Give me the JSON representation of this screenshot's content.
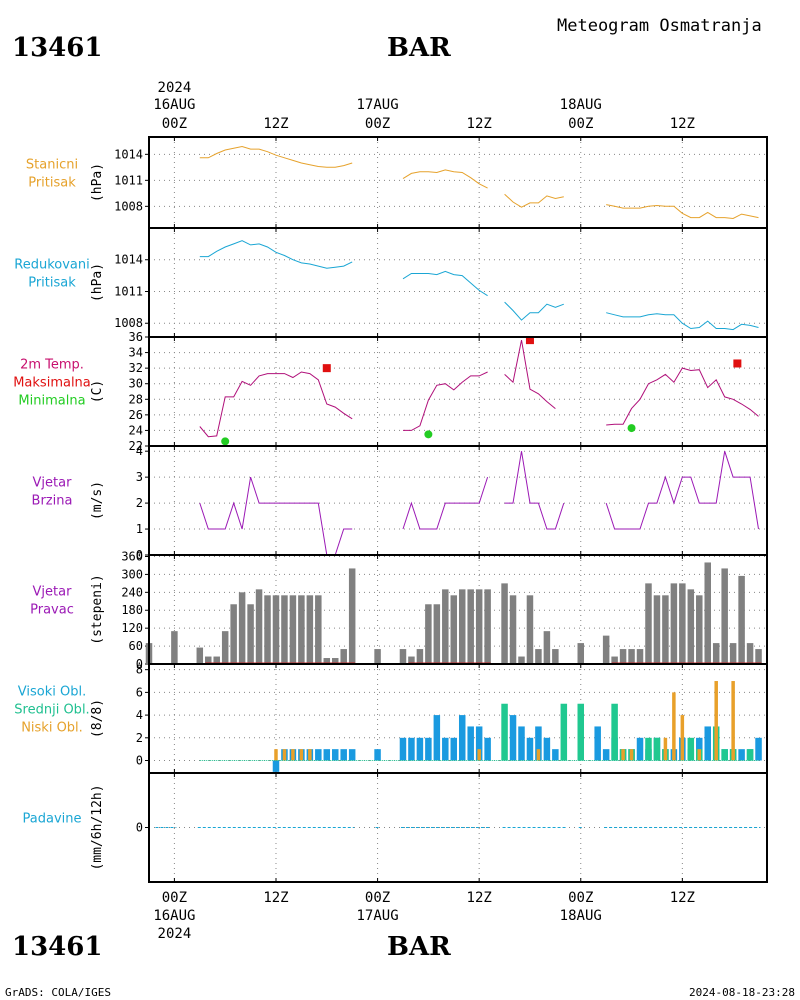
{
  "header": {
    "station_id": "13461",
    "station_name": "BAR",
    "title": "Meteogram Osmatranja"
  },
  "footer": {
    "station_id": "13461",
    "station_name": "BAR",
    "credit": "GrADS: COLA/IGES",
    "timestamp": "2024-08-18-23:28"
  },
  "time_axis": {
    "top_labels": [
      {
        "line1": "2024",
        "line2": "16AUG",
        "line3": "00Z",
        "t": 0
      },
      {
        "line1": "",
        "line2": "",
        "line3": "12Z",
        "t": 12
      },
      {
        "line1": "",
        "line2": "17AUG",
        "line3": "00Z",
        "t": 24
      },
      {
        "line1": "",
        "line2": "",
        "line3": "12Z",
        "t": 36
      },
      {
        "line1": "",
        "line2": "18AUG",
        "line3": "00Z",
        "t": 48
      },
      {
        "line1": "",
        "line2": "",
        "line3": "12Z",
        "t": 60
      }
    ],
    "bottom_labels": [
      {
        "line1": "00Z",
        "line2": "16AUG",
        "line3": "2024",
        "t": 0
      },
      {
        "line1": "12Z",
        "line2": "",
        "line3": "",
        "t": 12
      },
      {
        "line1": "00Z",
        "line2": "17AUG",
        "line3": "",
        "t": 24
      },
      {
        "line1": "12Z",
        "line2": "",
        "line3": "",
        "t": 36
      },
      {
        "line1": "00Z",
        "line2": "18AUG",
        "line3": "",
        "t": 48
      },
      {
        "line1": "12Z",
        "line2": "",
        "line3": "",
        "t": 60
      }
    ],
    "range_hours": [
      -3,
      70
    ]
  },
  "chart_data": [
    {
      "type": "line",
      "panel": "stanicni",
      "labels": [
        "Stanicni",
        "Pritisak"
      ],
      "label_colors": [
        "#e6a22c",
        "#e6a22c"
      ],
      "ylabel": "(hPa)",
      "ylim": [
        1005.5,
        1016.0
      ],
      "yticks": [
        1008,
        1011,
        1014
      ],
      "color": "#e6a22c",
      "segments": [
        {
          "x": [
            3,
            4,
            5,
            6,
            7,
            8,
            9,
            10,
            11,
            12,
            13,
            14,
            15,
            16,
            17,
            18,
            19,
            20,
            21
          ],
          "y": [
            1013.6,
            1013.6,
            1014.1,
            1014.5,
            1014.7,
            1014.9,
            1014.6,
            1014.6,
            1014.3,
            1013.9,
            1013.6,
            1013.3,
            1013.0,
            1012.8,
            1012.6,
            1012.5,
            1012.5,
            1012.7,
            1013.0
          ]
        },
        {
          "x": [
            27,
            28,
            29,
            30,
            31,
            32,
            33,
            34,
            35,
            36,
            37
          ],
          "y": [
            1011.2,
            1011.8,
            1012.0,
            1012.0,
            1011.9,
            1012.2,
            1012.0,
            1011.9,
            1011.3,
            1010.6,
            1010.1
          ]
        },
        {
          "x": [
            39,
            40,
            41,
            42,
            43,
            44,
            45,
            46
          ],
          "y": [
            1009.4,
            1008.5,
            1007.9,
            1008.4,
            1008.4,
            1009.2,
            1008.9,
            1009.1
          ]
        },
        {
          "x": [
            51,
            52,
            53,
            54,
            55,
            56,
            57,
            58,
            59,
            60,
            61,
            62,
            63,
            64,
            65,
            66,
            67,
            68,
            69
          ],
          "y": [
            1008.2,
            1008.0,
            1007.8,
            1007.8,
            1007.8,
            1008.0,
            1008.1,
            1008.0,
            1008.0,
            1007.2,
            1006.7,
            1006.7,
            1007.3,
            1006.7,
            1006.7,
            1006.6,
            1007.1,
            1006.9,
            1006.7
          ]
        }
      ]
    },
    {
      "type": "line",
      "panel": "redukovani",
      "labels": [
        "Redukovani",
        "Pritisak"
      ],
      "label_colors": [
        "#1aa6d4",
        "#1aa6d4"
      ],
      "ylabel": "(hPa)",
      "ylim": [
        1006.7,
        1017.0
      ],
      "yticks": [
        1008,
        1011,
        1014
      ],
      "color": "#1aa6d4",
      "segments": [
        {
          "x": [
            3,
            4,
            5,
            6,
            7,
            8,
            9,
            10,
            11,
            12,
            13,
            14,
            15,
            16,
            17,
            18,
            19,
            20,
            21
          ],
          "y": [
            1014.3,
            1014.3,
            1014.8,
            1015.2,
            1015.5,
            1015.8,
            1015.4,
            1015.5,
            1015.2,
            1014.7,
            1014.4,
            1014.0,
            1013.7,
            1013.6,
            1013.4,
            1013.2,
            1013.3,
            1013.4,
            1013.8
          ]
        },
        {
          "x": [
            27,
            28,
            29,
            30,
            31,
            32,
            33,
            34,
            35,
            36,
            37
          ],
          "y": [
            1012.2,
            1012.7,
            1012.7,
            1012.7,
            1012.6,
            1012.9,
            1012.6,
            1012.5,
            1011.8,
            1011.1,
            1010.6
          ]
        },
        {
          "x": [
            39,
            40,
            41,
            42,
            43,
            44,
            45,
            46
          ],
          "y": [
            1010.0,
            1009.2,
            1008.3,
            1009.0,
            1009.0,
            1009.8,
            1009.5,
            1009.8
          ]
        },
        {
          "x": [
            51,
            52,
            53,
            54,
            55,
            56,
            57,
            58,
            59,
            60,
            61,
            62,
            63,
            64,
            65,
            66,
            67,
            68,
            69
          ],
          "y": [
            1009.0,
            1008.8,
            1008.6,
            1008.6,
            1008.6,
            1008.8,
            1008.9,
            1008.8,
            1008.8,
            1008.0,
            1007.5,
            1007.6,
            1008.2,
            1007.5,
            1007.5,
            1007.4,
            1007.9,
            1007.8,
            1007.6
          ]
        }
      ]
    },
    {
      "type": "line",
      "panel": "temperature",
      "labels": [
        "2m Temp.",
        "Maksimalna",
        "Minimalna"
      ],
      "label_colors": [
        "#c8106e",
        "#e01010",
        "#22cc22"
      ],
      "ylabel": "(C)",
      "ylim": [
        22,
        36
      ],
      "yticks": [
        22,
        24,
        26,
        28,
        30,
        32,
        34,
        36
      ],
      "color": "#b0107a",
      "segments": [
        {
          "x": [
            3,
            4,
            5,
            6,
            7,
            8,
            9,
            10,
            11,
            12,
            13,
            14,
            15,
            16,
            17,
            18,
            19,
            20,
            21
          ],
          "y": [
            24.5,
            23.2,
            23.3,
            28.3,
            28.3,
            30.3,
            29.8,
            31.0,
            31.3,
            31.3,
            31.3,
            30.8,
            31.5,
            31.3,
            30.5,
            27.4,
            27.0,
            26.2,
            25.5
          ]
        },
        {
          "x": [
            27,
            28,
            29,
            30,
            31,
            32,
            33,
            34,
            35,
            36,
            37
          ],
          "y": [
            24.0,
            24.0,
            24.6,
            27.9,
            29.8,
            30.0,
            29.2,
            30.2,
            31.0,
            31.0,
            31.5
          ]
        },
        {
          "x": [
            39,
            40,
            41,
            42,
            43,
            44,
            45,
            46
          ],
          "y": [
            31.2,
            30.2,
            35.6,
            29.3,
            28.7,
            27.7,
            26.8,
            null
          ]
        },
        {
          "x": [
            51,
            52,
            53,
            54,
            55,
            56,
            57,
            58,
            59,
            60,
            61,
            62,
            63,
            64,
            65,
            66,
            67,
            68,
            69
          ],
          "y": [
            24.7,
            24.8,
            24.8,
            26.8,
            28.0,
            30.0,
            30.5,
            31.2,
            30.2,
            32.0,
            31.7,
            31.8,
            29.5,
            30.5,
            28.3,
            28.0,
            27.4,
            26.7,
            25.8
          ]
        }
      ],
      "max_points": {
        "x": [
          18,
          42,
          66.5
        ],
        "y": [
          32.0,
          35.6,
          32.6
        ],
        "color": "#e01010"
      },
      "min_points": {
        "x": [
          6,
          30,
          54
        ],
        "y": [
          22.6,
          23.5,
          24.3
        ],
        "color": "#22cc22"
      }
    },
    {
      "type": "line",
      "panel": "wind_speed",
      "labels": [
        "Vjetar",
        "Brzina"
      ],
      "label_colors": [
        "#9b19b5",
        "#9b19b5"
      ],
      "ylabel": "(m/s)",
      "ylim": [
        0,
        4.2
      ],
      "yticks": [
        0,
        1,
        2,
        3,
        4
      ],
      "color": "#9b19b5",
      "segments": [
        {
          "x": [
            3,
            4,
            5,
            6,
            7,
            8,
            9,
            10,
            11,
            12,
            13,
            14,
            15,
            16,
            17,
            18,
            19,
            20,
            21
          ],
          "y": [
            2,
            1,
            1,
            1,
            2,
            1,
            3,
            2,
            2,
            2,
            2,
            2,
            2,
            2,
            2,
            0,
            0,
            1,
            1
          ]
        },
        {
          "x": [
            27,
            28,
            29,
            30,
            31,
            32,
            33,
            34,
            35,
            36,
            37
          ],
          "y": [
            1,
            2,
            1,
            1,
            1,
            2,
            2,
            2,
            2,
            2,
            3
          ]
        },
        {
          "x": [
            39,
            40,
            41,
            42,
            43,
            44,
            45,
            46
          ],
          "y": [
            2,
            2,
            4,
            2,
            2,
            1,
            1,
            2
          ]
        },
        {
          "x": [
            51,
            52,
            53,
            54,
            55,
            56,
            57,
            58,
            59,
            60,
            61,
            62,
            63,
            64,
            65,
            66,
            67,
            68,
            69
          ],
          "y": [
            2,
            1,
            1,
            1,
            1,
            2,
            2,
            3,
            2,
            3,
            3,
            2,
            2,
            2,
            4,
            3,
            3,
            3,
            1
          ]
        }
      ]
    },
    {
      "type": "bar",
      "panel": "wind_direction",
      "labels": [
        "Vjetar",
        "Pravac"
      ],
      "label_colors": [
        "#9b19b5",
        "#9b19b5"
      ],
      "ylabel": "(stepeni)",
      "ylim": [
        0,
        365
      ],
      "yticks": [
        0,
        60,
        120,
        180,
        240,
        300,
        360
      ],
      "color": "#808080",
      "baseline_color": "#c22020",
      "x": [
        -3,
        0,
        3,
        4,
        5,
        6,
        7,
        8,
        9,
        10,
        11,
        12,
        13,
        14,
        15,
        16,
        17,
        18,
        19,
        20,
        21,
        24,
        27,
        28,
        29,
        30,
        31,
        32,
        33,
        34,
        35,
        36,
        37,
        39,
        40,
        41,
        42,
        43,
        44,
        45,
        48,
        51,
        52,
        53,
        54,
        55,
        56,
        57,
        58,
        59,
        60,
        61,
        62,
        63,
        64,
        65,
        66,
        67,
        68,
        69
      ],
      "values": [
        70,
        110,
        55,
        25,
        25,
        110,
        200,
        240,
        200,
        250,
        230,
        230,
        230,
        230,
        230,
        230,
        230,
        20,
        20,
        50,
        320,
        50,
        50,
        25,
        50,
        200,
        200,
        250,
        230,
        250,
        250,
        250,
        250,
        270,
        230,
        25,
        230,
        50,
        110,
        50,
        70,
        95,
        25,
        50,
        50,
        50,
        270,
        230,
        230,
        270,
        270,
        250,
        230,
        340,
        70,
        320,
        70,
        295,
        70,
        50
      ]
    },
    {
      "type": "bar",
      "panel": "clouds",
      "labels": [
        "Visoki Obl.",
        "Srednji Obl.",
        "Niski Obl."
      ],
      "label_colors": [
        "#1aa6d4",
        "#20c090",
        "#e6a22c"
      ],
      "ylabel": "(8/8)",
      "ylim": [
        -1.1,
        8.5
      ],
      "yticks": [
        0,
        2,
        4,
        6,
        8
      ],
      "series": [
        {
          "name": "Visoki Obl.",
          "color": "#1a9ae0",
          "x": [
            12,
            13,
            14,
            15,
            16,
            17,
            18,
            19,
            20,
            21,
            24,
            27,
            28,
            29,
            30,
            31,
            32,
            33,
            34,
            35,
            36,
            37,
            40,
            41,
            42,
            43,
            44,
            45,
            50,
            51,
            52,
            53,
            54,
            55,
            56,
            57,
            58,
            59,
            60,
            61,
            62,
            63,
            64,
            65,
            66,
            67,
            68,
            69
          ],
          "values": [
            -1,
            1,
            1,
            1,
            1,
            1,
            1,
            1,
            1,
            1,
            1,
            2,
            2,
            2,
            2,
            4,
            2,
            2,
            4,
            3,
            3,
            2,
            4,
            3,
            2,
            3,
            2,
            1,
            3,
            1,
            2,
            1,
            1,
            2,
            1,
            2,
            1,
            1,
            2,
            1,
            2,
            3,
            1,
            1,
            1,
            1,
            1,
            2
          ]
        },
        {
          "name": "Srednji Obl.",
          "color": "#20c890",
          "x": [
            39,
            46,
            48,
            52,
            53,
            54,
            56,
            57,
            58,
            61,
            62,
            63,
            64,
            65,
            66,
            67,
            68,
            69
          ],
          "values": [
            5,
            5,
            5,
            5,
            1,
            1,
            2,
            2,
            1,
            2,
            1,
            0,
            3,
            1,
            1,
            0,
            1,
            0
          ]
        },
        {
          "name": "Niski Obl.",
          "color": "#e8a02a",
          "x": [
            12,
            13,
            14,
            15,
            16,
            36,
            43,
            53,
            54,
            58,
            59,
            60,
            62,
            64,
            66
          ],
          "values": [
            1,
            1,
            1,
            1,
            1,
            1,
            1,
            1,
            1,
            2,
            6,
            4,
            1,
            7,
            7
          ]
        }
      ]
    },
    {
      "type": "line",
      "panel": "precipitation",
      "labels": [
        "Padavine"
      ],
      "label_colors": [
        "#1aa6d4"
      ],
      "ylabel": "(mm/6h/12h)",
      "ylim": [
        -1,
        1
      ],
      "yticks": [
        0
      ],
      "color": "#1aa6d4",
      "segments": [
        {
          "x": [
            -2,
            0
          ]
        },
        {
          "x": [
            3,
            21
          ]
        },
        {
          "x": [
            24,
            24
          ]
        },
        {
          "x": [
            27,
            37
          ]
        },
        {
          "x": [
            39,
            46
          ]
        },
        {
          "x": [
            48,
            48
          ]
        },
        {
          "x": [
            51,
            69
          ]
        }
      ]
    }
  ]
}
